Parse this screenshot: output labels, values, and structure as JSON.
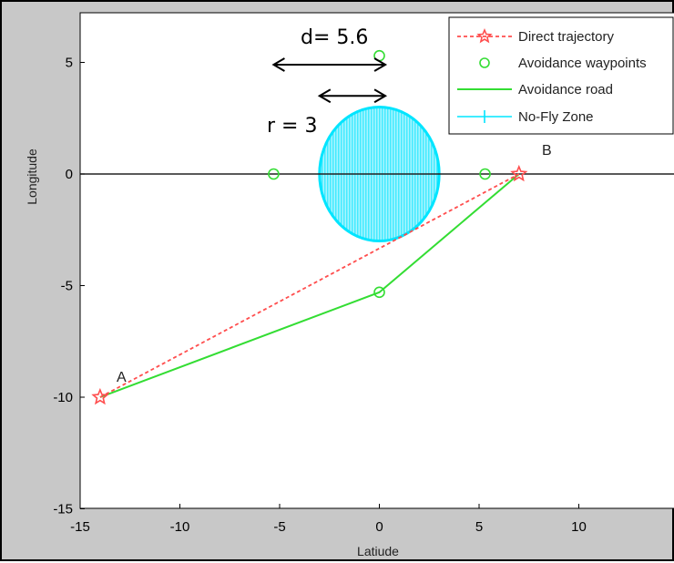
{
  "chart_data": {
    "type": "line",
    "title": "",
    "xlabel": "Latiude",
    "ylabel": "Longitude",
    "xlim": [
      -15,
      15
    ],
    "ylim": [
      -15,
      7
    ],
    "xticks": [
      -15,
      -10,
      -5,
      0,
      5,
      10
    ],
    "yticks": [
      -15,
      -10,
      -5,
      0,
      5
    ],
    "xtick_labels": [
      "-15",
      "-10",
      "-5",
      "0",
      "5",
      "10"
    ],
    "ytick_labels": [
      "-15",
      "-10",
      "-5",
      "0",
      "5"
    ],
    "grid": false,
    "legend_position": "top-right",
    "series": [
      {
        "name": "Direct trajectory",
        "style": "dotted-line-star-markers",
        "color": "#ff4d4d",
        "x": [
          -14,
          7
        ],
        "y": [
          -10,
          0
        ]
      },
      {
        "name": "Avoidance waypoints",
        "style": "circle-markers",
        "color": "#33dd33",
        "x": [
          -5.3,
          0,
          5.3,
          0
        ],
        "y": [
          0,
          5.3,
          0,
          -5.3
        ]
      },
      {
        "name": "Avoidance road",
        "style": "solid-line",
        "color": "#33dd33",
        "x": [
          -14,
          0,
          7
        ],
        "y": [
          -10,
          -5.3,
          0
        ]
      },
      {
        "name": "No-Fly Zone",
        "style": "filled-circle",
        "color": "#00e5ff",
        "center": [
          0,
          0
        ],
        "radius": 3
      }
    ],
    "reference_line": {
      "y": 0,
      "color": "#222222"
    },
    "annotations": {
      "d_label": "d= 5.6",
      "r_label": "r = 3",
      "point_a": "A",
      "point_b": "B"
    },
    "annotation_values": {
      "d_arrow": {
        "x_from": -5.3,
        "x_to": 0.3,
        "y": 4.9
      },
      "r_arrow": {
        "x_from": -3,
        "x_to": 0.3,
        "y": 3.5
      }
    }
  }
}
